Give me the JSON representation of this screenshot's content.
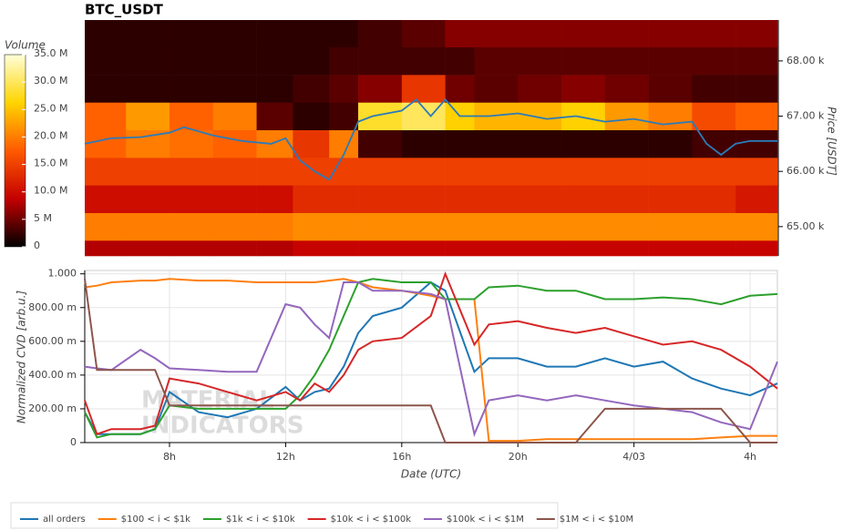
{
  "chart_data": [
    {
      "type": "heatmap",
      "title": "BTC_USDT",
      "colorbar_title": "Volume",
      "y2_label": "Price [USDT]",
      "x_bins": [
        5.08,
        6.5,
        8,
        9.5,
        11,
        12.25,
        13.5,
        14.5,
        16,
        17.5,
        18.5,
        20,
        21.5,
        23,
        24.5,
        26,
        27.5,
        28.94
      ],
      "y_bins": [
        64.47,
        64.75,
        65.25,
        65.75,
        66.25,
        66.75,
        67.25,
        67.75,
        68.25,
        68.74
      ],
      "z": [
        [
          8,
          8,
          8,
          8,
          8,
          9,
          9,
          9,
          9,
          9,
          9,
          9,
          9,
          9,
          9,
          9,
          9
        ],
        [
          20,
          20,
          20,
          20,
          20,
          21,
          21,
          21,
          21,
          21,
          21,
          21,
          21,
          21,
          21,
          21,
          21
        ],
        [
          10,
          10,
          10,
          10,
          10,
          13,
          13,
          13,
          13,
          13,
          13,
          13,
          13,
          13,
          13,
          13,
          11
        ],
        [
          15,
          15,
          15,
          15,
          15,
          15,
          15,
          15,
          15,
          15,
          15,
          15,
          15,
          15,
          15,
          15,
          15
        ],
        [
          18,
          20,
          19,
          18,
          20,
          14,
          20,
          3,
          2,
          2,
          2,
          2,
          2,
          2,
          2,
          3,
          3
        ],
        [
          18,
          22,
          18,
          20,
          4,
          2,
          3,
          28,
          30,
          26,
          24,
          24,
          26,
          22,
          20,
          16,
          18
        ],
        [
          2,
          2,
          2,
          2,
          2,
          3,
          4,
          6,
          14,
          5,
          4,
          5,
          6,
          5,
          4,
          3,
          3
        ],
        [
          2,
          2,
          2,
          2,
          2,
          2,
          3,
          3,
          3,
          3,
          4,
          4,
          4,
          4,
          4,
          4,
          4
        ],
        [
          2,
          2,
          2,
          2,
          2,
          2,
          2,
          3,
          4,
          6,
          6,
          6,
          6,
          6,
          6,
          6,
          6
        ]
      ],
      "colormap": [
        "#000000",
        "#c40000",
        "#ff5a00",
        "#ffd400",
        "#ffffd8"
      ],
      "zlim": [
        0,
        35
      ],
      "zticks": [
        0,
        {
          "value": 5,
          "label": "5 M"
        },
        {
          "value": 10,
          "label": "10.0 M"
        },
        {
          "value": 15,
          "label": "15.0 M"
        },
        {
          "value": 20,
          "label": "20.0 M"
        },
        {
          "value": 25,
          "label": "25.0 M"
        },
        {
          "value": 30,
          "label": "30.0 M"
        },
        {
          "value": 35,
          "label": "35.0 M"
        }
      ],
      "xlim": [
        5.08,
        28.94
      ],
      "y2lim": [
        64.47,
        68.74
      ],
      "y2ticks": [
        {
          "value": 65,
          "label": "65.00 k"
        },
        {
          "value": 66,
          "label": "66.00 k"
        },
        {
          "value": 67,
          "label": "67.00 k"
        },
        {
          "value": 68,
          "label": "68.00 k"
        }
      ],
      "price": {
        "color": "#2b7bb9",
        "x": [
          5.08,
          6,
          7,
          8,
          8.5,
          9.5,
          10.5,
          11.5,
          12,
          12.5,
          13,
          13.5,
          14,
          14.5,
          15,
          16,
          16.5,
          17,
          17.5,
          18,
          19,
          20,
          21,
          22,
          23,
          24,
          25,
          26,
          26.5,
          27,
          27.5,
          28,
          28.94
        ],
        "values": [
          66.5,
          66.6,
          66.62,
          66.7,
          66.8,
          66.65,
          66.55,
          66.5,
          66.6,
          66.2,
          66.0,
          65.85,
          66.3,
          66.9,
          67.0,
          67.1,
          67.3,
          67.0,
          67.3,
          67.0,
          67.0,
          67.05,
          66.95,
          67.0,
          66.9,
          66.95,
          66.85,
          66.9,
          66.5,
          66.3,
          66.5,
          66.55,
          66.55
        ]
      }
    },
    {
      "type": "line",
      "xlabel": "Date (UTC)",
      "ylabel": "Normalized CVD [arb.u.]",
      "watermark": [
        "MATERIAL",
        "INDICATORS"
      ],
      "xlim": [
        5.08,
        28.94
      ],
      "xticks": [
        {
          "value": 8,
          "label": "8h"
        },
        {
          "value": 12,
          "label": "12h"
        },
        {
          "value": 16,
          "label": "16h"
        },
        {
          "value": 20,
          "label": "20h"
        },
        {
          "value": 24,
          "label": "4/03"
        },
        {
          "value": 28,
          "label": "4h"
        }
      ],
      "ylim": [
        0,
        1.02
      ],
      "yticks": [
        0,
        {
          "value": 0.2,
          "label": "200.00 m"
        },
        {
          "value": 0.4,
          "label": "400.00 m"
        },
        {
          "value": 0.6,
          "label": "600.00 m"
        },
        {
          "value": 0.8,
          "label": "800.00 m"
        },
        {
          "value": 1,
          "label": "1.000"
        }
      ],
      "grid": true,
      "x": [
        5.08,
        5.5,
        6,
        7,
        7.5,
        8,
        9,
        10,
        11,
        12,
        12.5,
        13,
        13.5,
        14,
        14.5,
        15,
        16,
        17,
        17.5,
        18.5,
        19,
        20,
        21,
        22,
        23,
        24,
        25,
        26,
        27,
        28,
        28.94
      ],
      "series": [
        {
          "name": "all orders",
          "color": "#1f77b4",
          "values": [
            0.18,
            0.05,
            0.05,
            0.05,
            0.08,
            0.3,
            0.18,
            0.15,
            0.2,
            0.33,
            0.25,
            0.3,
            0.32,
            0.45,
            0.65,
            0.75,
            0.8,
            0.95,
            0.9,
            0.42,
            0.5,
            0.5,
            0.45,
            0.45,
            0.5,
            0.45,
            0.48,
            0.38,
            0.32,
            0.28,
            0.35
          ]
        },
        {
          "name": "$100 < i < $1k",
          "color": "#ff7f0e",
          "values": [
            0.92,
            0.93,
            0.95,
            0.96,
            0.96,
            0.97,
            0.96,
            0.96,
            0.95,
            0.95,
            0.95,
            0.95,
            0.96,
            0.97,
            0.95,
            0.92,
            0.9,
            0.87,
            0.85,
            0.85,
            0.01,
            0.01,
            0.02,
            0.02,
            0.02,
            0.02,
            0.02,
            0.02,
            0.03,
            0.04,
            0.04
          ]
        },
        {
          "name": "$1k < i < $10k",
          "color": "#2ca02c",
          "values": [
            0.18,
            0.03,
            0.05,
            0.05,
            0.08,
            0.22,
            0.2,
            0.2,
            0.2,
            0.2,
            0.28,
            0.4,
            0.55,
            0.75,
            0.95,
            0.97,
            0.95,
            0.95,
            0.85,
            0.85,
            0.92,
            0.93,
            0.9,
            0.9,
            0.85,
            0.85,
            0.86,
            0.85,
            0.82,
            0.87,
            0.88
          ]
        },
        {
          "name": "$10k < i < $100k",
          "color": "#d62728",
          "values": [
            0.25,
            0.05,
            0.08,
            0.08,
            0.1,
            0.38,
            0.35,
            0.3,
            0.25,
            0.3,
            0.25,
            0.35,
            0.3,
            0.4,
            0.55,
            0.6,
            0.62,
            0.75,
            1.0,
            0.58,
            0.7,
            0.72,
            0.68,
            0.65,
            0.68,
            0.63,
            0.58,
            0.6,
            0.55,
            0.45,
            0.32
          ]
        },
        {
          "name": "$100k < i < $1M",
          "color": "#9467bd",
          "values": [
            0.45,
            0.44,
            0.43,
            0.55,
            0.5,
            0.44,
            0.43,
            0.42,
            0.42,
            0.82,
            0.8,
            0.7,
            0.62,
            0.95,
            0.95,
            0.9,
            0.9,
            0.88,
            0.85,
            0.05,
            0.25,
            0.28,
            0.25,
            0.28,
            0.25,
            0.22,
            0.2,
            0.18,
            0.12,
            0.08,
            0.48
          ]
        },
        {
          "name": "$1M < i < $10M",
          "color": "#8c564b",
          "values": [
            0.97,
            0.43,
            0.43,
            0.43,
            0.43,
            0.22,
            0.22,
            0.22,
            0.22,
            0.22,
            0.22,
            0.22,
            0.22,
            0.22,
            0.22,
            0.22,
            0.22,
            0.22,
            0,
            0,
            0,
            0,
            0,
            0,
            0.2,
            0.2,
            0.2,
            0.2,
            0.2,
            0,
            0
          ]
        }
      ]
    }
  ]
}
